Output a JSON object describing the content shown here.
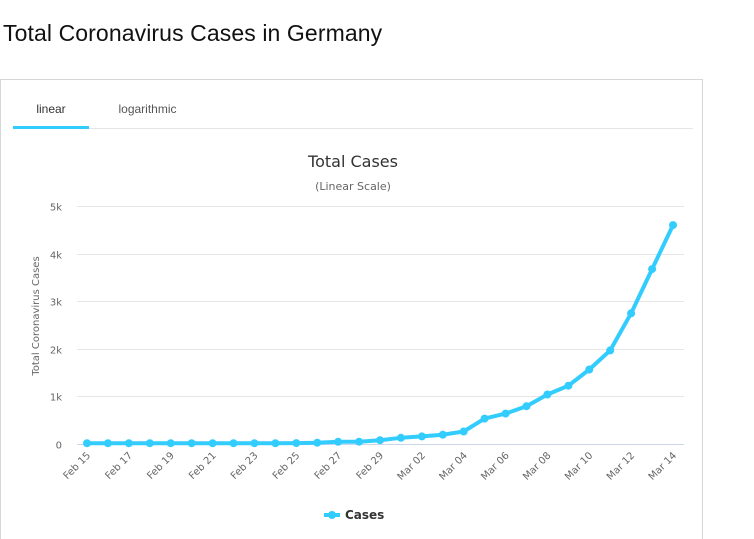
{
  "page": {
    "title": "Total Coronavirus Cases in Germany"
  },
  "tabs": [
    {
      "label": "linear",
      "active": true
    },
    {
      "label": "logarithmic",
      "active": false
    }
  ],
  "colors": {
    "series": "#33ccff",
    "grid": "#e6e6e6"
  },
  "chart_data": {
    "type": "line",
    "title": "Total Cases",
    "subtitle": "(Linear Scale)",
    "xlabel": "",
    "ylabel": "Total Coronavirus Cases",
    "ylim": [
      0,
      5000
    ],
    "y_ticks": [
      0,
      1000,
      2000,
      3000,
      4000,
      5000
    ],
    "y_tick_labels": [
      "0",
      "1k",
      "2k",
      "3k",
      "4k",
      "5k"
    ],
    "categories": [
      "Feb 15",
      "Feb 16",
      "Feb 17",
      "Feb 18",
      "Feb 19",
      "Feb 20",
      "Feb 21",
      "Feb 22",
      "Feb 23",
      "Feb 24",
      "Feb 25",
      "Feb 26",
      "Feb 27",
      "Feb 28",
      "Feb 29",
      "Mar 01",
      "Mar 02",
      "Mar 03",
      "Mar 04",
      "Mar 05",
      "Mar 06",
      "Mar 07",
      "Mar 08",
      "Mar 09",
      "Mar 10",
      "Mar 11",
      "Mar 12",
      "Mar 13",
      "Mar 14"
    ],
    "x_tick_labels": [
      "Feb 15",
      "Feb 17",
      "Feb 19",
      "Feb 21",
      "Feb 23",
      "Feb 25",
      "Feb 27",
      "Feb 29",
      "Mar 02",
      "Mar 04",
      "Mar 06",
      "Mar 08",
      "Mar 10",
      "Mar 12",
      "Mar 14"
    ],
    "series": [
      {
        "name": "Cases",
        "values": [
          16,
          16,
          16,
          16,
          16,
          16,
          16,
          16,
          16,
          16,
          18,
          27,
          46,
          48,
          79,
          130,
          159,
          196,
          262,
          534,
          639,
          795,
          1040,
          1224,
          1565,
          1966,
          2745,
          3675,
          4599
        ]
      }
    ],
    "legend": "bottom-center",
    "grid": true
  }
}
